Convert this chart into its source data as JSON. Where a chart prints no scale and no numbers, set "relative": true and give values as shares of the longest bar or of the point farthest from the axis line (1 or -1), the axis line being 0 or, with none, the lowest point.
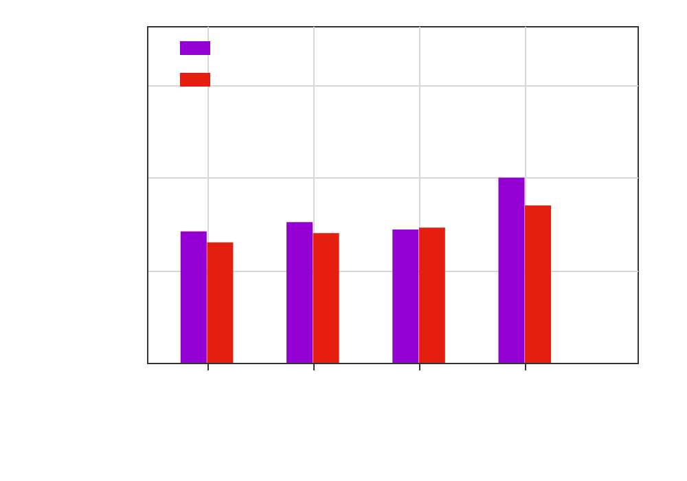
{
  "chart_data": {
    "type": "bar",
    "relative": true,
    "categories": [
      null,
      null,
      null,
      null
    ],
    "series": [
      {
        "color": "#9400d3",
        "values": [
          0.71,
          0.76,
          0.72,
          1
        ]
      },
      {
        "color": "#e51e10",
        "values": [
          0.65,
          0.7,
          0.73,
          0.85
        ]
      }
    ],
    "grid": true,
    "tick_labels": false
  }
}
